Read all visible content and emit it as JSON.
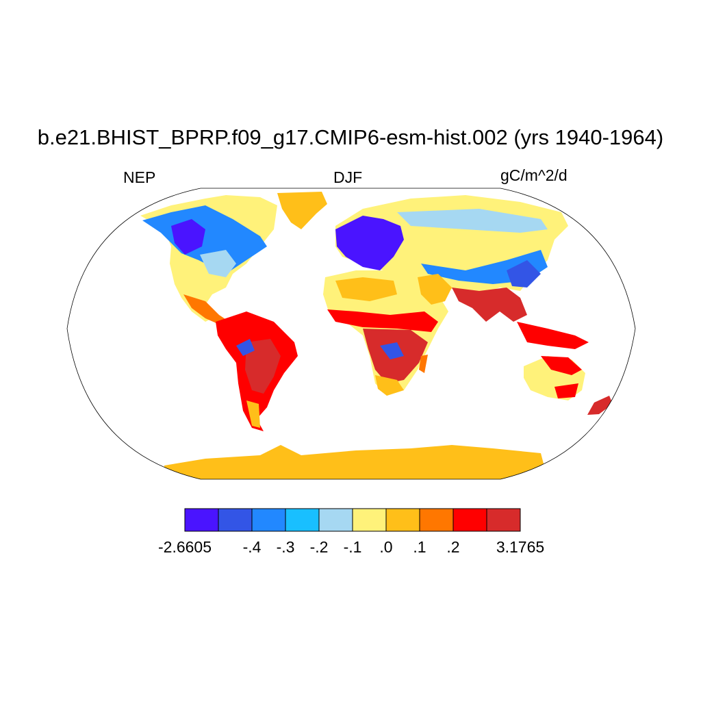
{
  "title": "b.e21.BHIST_BPRP.f09_g17.CMIP6-esm-hist.002 (yrs 1940-1964)",
  "left_string": "NEP",
  "center_string": "DJF",
  "right_string": "gC/m^2/d",
  "projection": "robinson",
  "colorbar": {
    "colors": [
      "#4a14ff",
      "#3355e6",
      "#2288ff",
      "#19bfff",
      "#a6d8f2",
      "#fff27a",
      "#ffbf19",
      "#ff7700",
      "#ff0000",
      "#d72b2b"
    ],
    "labels": [
      "-2.6605",
      "-.4",
      "-.3",
      "-.2",
      "-.1",
      ".0",
      ".1",
      ".2",
      "3.1765"
    ],
    "label_boundaries": [
      0,
      2,
      3,
      4,
      5,
      6,
      7,
      8,
      10
    ]
  }
}
